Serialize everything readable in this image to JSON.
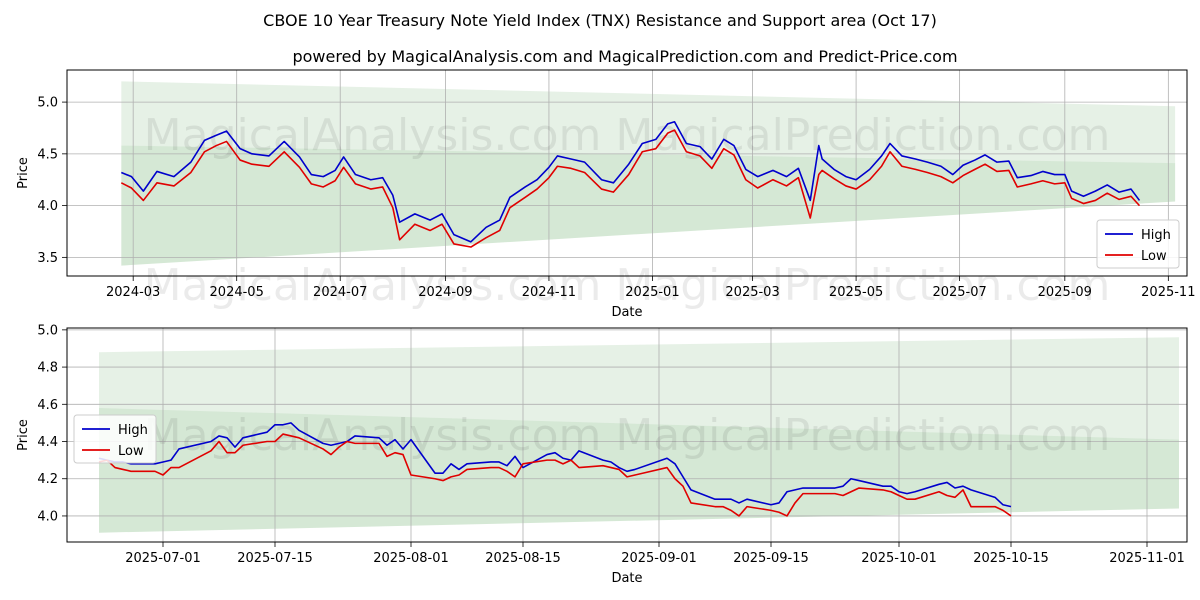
{
  "title": "CBOE 10 Year Treasury Note Yield Index (TNX) Resistance and Support area (Oct 17)",
  "subtitle": "powered by MagicalAnalysis.com and MagicalPrediction.com and Predict-Price.com",
  "watermark": "MagicalAnalysis.com   MagicalPrediction.com",
  "colors": {
    "high": "#0000cc",
    "low": "#e00000",
    "band": "#2e8b2e",
    "grid": "#b0b0b0"
  },
  "chart_data": [
    {
      "type": "line",
      "xlabel": "Date",
      "ylabel": "Price",
      "xlim": [
        "2024-01-22",
        "2025-11-12"
      ],
      "ylim": [
        3.32,
        5.31
      ],
      "yticks": [
        3.5,
        4.0,
        4.5,
        5.0
      ],
      "ytick_labels": [
        "3.5",
        "4.0",
        "4.5",
        "5.0"
      ],
      "xticks": [
        "2024-03-01",
        "2024-05-01",
        "2024-07-01",
        "2024-09-01",
        "2024-11-01",
        "2025-01-01",
        "2025-03-01",
        "2025-05-01",
        "2025-07-01",
        "2025-09-01",
        "2025-11-01"
      ],
      "xtick_labels": [
        "2024-03",
        "2024-05",
        "2024-07",
        "2024-09",
        "2024-11",
        "2025-01",
        "2025-03",
        "2025-05",
        "2025-07",
        "2025-09",
        "2025-11"
      ],
      "grid": true,
      "legend": {
        "placement": "lower-right",
        "entries": [
          "High",
          "Low"
        ]
      },
      "bands": [
        {
          "name": "resistance-area",
          "x": [
            "2024-02-23",
            "2025-11-05"
          ],
          "upper": [
            5.2,
            4.96
          ],
          "lower": [
            4.58,
            4.41
          ]
        },
        {
          "name": "support-area",
          "x": [
            "2024-02-23",
            "2025-11-05"
          ],
          "upper": [
            4.58,
            4.41
          ],
          "lower": [
            3.42,
            4.04
          ]
        }
      ],
      "series": [
        {
          "name": "High",
          "x": [
            "2024-02-23",
            "2024-02-29",
            "2024-03-07",
            "2024-03-15",
            "2024-03-25",
            "2024-04-04",
            "2024-04-12",
            "2024-04-19",
            "2024-04-25",
            "2024-05-03",
            "2024-05-10",
            "2024-05-20",
            "2024-05-29",
            "2024-06-07",
            "2024-06-14",
            "2024-06-21",
            "2024-06-28",
            "2024-07-03",
            "2024-07-10",
            "2024-07-19",
            "2024-07-26",
            "2024-08-01",
            "2024-08-05",
            "2024-08-14",
            "2024-08-23",
            "2024-08-30",
            "2024-09-06",
            "2024-09-16",
            "2024-09-25",
            "2024-10-03",
            "2024-10-09",
            "2024-10-18",
            "2024-10-25",
            "2024-11-01",
            "2024-11-06",
            "2024-11-14",
            "2024-11-22",
            "2024-12-02",
            "2024-12-09",
            "2024-12-18",
            "2024-12-26",
            "2025-01-03",
            "2025-01-10",
            "2025-01-14",
            "2025-01-21",
            "2025-01-29",
            "2025-02-05",
            "2025-02-12",
            "2025-02-18",
            "2025-02-25",
            "2025-03-04",
            "2025-03-13",
            "2025-03-21",
            "2025-03-28",
            "2025-04-04",
            "2025-04-09",
            "2025-04-11",
            "2025-04-18",
            "2025-04-25",
            "2025-05-01",
            "2025-05-09",
            "2025-05-16",
            "2025-05-21",
            "2025-05-28",
            "2025-06-05",
            "2025-06-12",
            "2025-06-20",
            "2025-06-27",
            "2025-07-03",
            "2025-07-10",
            "2025-07-16",
            "2025-07-23",
            "2025-07-30",
            "2025-08-04",
            "2025-08-12",
            "2025-08-19",
            "2025-08-26",
            "2025-09-01",
            "2025-09-05",
            "2025-09-12",
            "2025-09-19",
            "2025-09-26",
            "2025-10-03",
            "2025-10-10",
            "2025-10-15"
          ],
          "values": [
            4.32,
            4.28,
            4.14,
            4.33,
            4.28,
            4.42,
            4.63,
            4.68,
            4.72,
            4.55,
            4.5,
            4.48,
            4.62,
            4.47,
            4.3,
            4.28,
            4.34,
            4.47,
            4.3,
            4.25,
            4.27,
            4.1,
            3.84,
            3.92,
            3.86,
            3.92,
            3.72,
            3.65,
            3.79,
            3.86,
            4.08,
            4.18,
            4.25,
            4.37,
            4.48,
            4.45,
            4.42,
            4.25,
            4.22,
            4.4,
            4.6,
            4.64,
            4.79,
            4.81,
            4.6,
            4.57,
            4.45,
            4.64,
            4.58,
            4.35,
            4.28,
            4.34,
            4.28,
            4.36,
            4.05,
            4.58,
            4.45,
            4.35,
            4.28,
            4.25,
            4.35,
            4.48,
            4.6,
            4.48,
            4.45,
            4.42,
            4.38,
            4.3,
            4.39,
            4.44,
            4.49,
            4.42,
            4.43,
            4.27,
            4.29,
            4.33,
            4.3,
            4.3,
            4.14,
            4.09,
            4.14,
            4.2,
            4.13,
            4.16,
            4.05
          ]
        },
        {
          "name": "Low",
          "x": [
            "2024-02-23",
            "2024-02-29",
            "2024-03-07",
            "2024-03-15",
            "2024-03-25",
            "2024-04-04",
            "2024-04-12",
            "2024-04-19",
            "2024-04-25",
            "2024-05-03",
            "2024-05-10",
            "2024-05-20",
            "2024-05-29",
            "2024-06-07",
            "2024-06-14",
            "2024-06-21",
            "2024-06-28",
            "2024-07-03",
            "2024-07-10",
            "2024-07-19",
            "2024-07-26",
            "2024-08-01",
            "2024-08-05",
            "2024-08-14",
            "2024-08-23",
            "2024-08-30",
            "2024-09-06",
            "2024-09-16",
            "2024-09-25",
            "2024-10-03",
            "2024-10-09",
            "2024-10-18",
            "2024-10-25",
            "2024-11-01",
            "2024-11-06",
            "2024-11-14",
            "2024-11-22",
            "2024-12-02",
            "2024-12-09",
            "2024-12-18",
            "2024-12-26",
            "2025-01-03",
            "2025-01-10",
            "2025-01-14",
            "2025-01-21",
            "2025-01-29",
            "2025-02-05",
            "2025-02-12",
            "2025-02-18",
            "2025-02-25",
            "2025-03-04",
            "2025-03-13",
            "2025-03-21",
            "2025-03-28",
            "2025-04-04",
            "2025-04-09",
            "2025-04-11",
            "2025-04-18",
            "2025-04-25",
            "2025-05-01",
            "2025-05-09",
            "2025-05-16",
            "2025-05-21",
            "2025-05-28",
            "2025-06-05",
            "2025-06-12",
            "2025-06-20",
            "2025-06-27",
            "2025-07-03",
            "2025-07-10",
            "2025-07-16",
            "2025-07-23",
            "2025-07-30",
            "2025-08-04",
            "2025-08-12",
            "2025-08-19",
            "2025-08-26",
            "2025-09-01",
            "2025-09-05",
            "2025-09-12",
            "2025-09-19",
            "2025-09-26",
            "2025-10-03",
            "2025-10-10",
            "2025-10-15"
          ],
          "values": [
            4.22,
            4.17,
            4.05,
            4.22,
            4.19,
            4.32,
            4.52,
            4.58,
            4.62,
            4.44,
            4.4,
            4.38,
            4.52,
            4.37,
            4.21,
            4.18,
            4.24,
            4.37,
            4.21,
            4.16,
            4.18,
            3.98,
            3.67,
            3.82,
            3.76,
            3.82,
            3.63,
            3.6,
            3.69,
            3.76,
            3.98,
            4.08,
            4.16,
            4.27,
            4.38,
            4.36,
            4.32,
            4.16,
            4.13,
            4.3,
            4.52,
            4.55,
            4.7,
            4.73,
            4.52,
            4.48,
            4.36,
            4.55,
            4.49,
            4.25,
            4.17,
            4.25,
            4.19,
            4.27,
            3.88,
            4.3,
            4.34,
            4.26,
            4.19,
            4.16,
            4.25,
            4.38,
            4.52,
            4.38,
            4.35,
            4.32,
            4.28,
            4.22,
            4.29,
            4.35,
            4.4,
            4.33,
            4.34,
            4.18,
            4.21,
            4.24,
            4.21,
            4.22,
            4.07,
            4.02,
            4.05,
            4.12,
            4.06,
            4.09,
            4.0
          ]
        }
      ]
    },
    {
      "type": "line",
      "xlabel": "Date",
      "ylabel": "Price",
      "xlim": [
        "2025-06-19",
        "2025-11-06"
      ],
      "ylim": [
        3.86,
        5.01
      ],
      "yticks": [
        4.0,
        4.2,
        4.4,
        4.6,
        4.8,
        5.0
      ],
      "ytick_labels": [
        "4.0",
        "4.2",
        "4.4",
        "4.6",
        "4.8",
        "5.0"
      ],
      "xticks": [
        "2025-07-01",
        "2025-07-15",
        "2025-08-01",
        "2025-08-15",
        "2025-09-01",
        "2025-09-15",
        "2025-10-01",
        "2025-10-15",
        "2025-11-01"
      ],
      "xtick_labels": [
        "2025-07-01",
        "2025-07-15",
        "2025-08-01",
        "2025-08-15",
        "2025-09-01",
        "2025-09-15",
        "2025-10-01",
        "2025-10-15",
        "2025-11-01"
      ],
      "grid": true,
      "legend": {
        "placement": "upper-left",
        "entries": [
          "High",
          "Low"
        ]
      },
      "bands": [
        {
          "name": "resistance-area",
          "x": [
            "2025-06-23",
            "2025-11-05"
          ],
          "upper": [
            4.88,
            4.96
          ],
          "lower": [
            4.58,
            4.41
          ]
        },
        {
          "name": "support-area",
          "x": [
            "2025-06-23",
            "2025-11-05"
          ],
          "upper": [
            4.58,
            4.41
          ],
          "lower": [
            3.91,
            4.04
          ]
        }
      ],
      "series": [
        {
          "name": "High",
          "x": [
            "2025-06-23",
            "2025-06-24",
            "2025-06-25",
            "2025-06-26",
            "2025-06-27",
            "2025-06-30",
            "2025-07-01",
            "2025-07-02",
            "2025-07-03",
            "2025-07-07",
            "2025-07-08",
            "2025-07-09",
            "2025-07-10",
            "2025-07-11",
            "2025-07-14",
            "2025-07-15",
            "2025-07-16",
            "2025-07-17",
            "2025-07-18",
            "2025-07-21",
            "2025-07-22",
            "2025-07-23",
            "2025-07-24",
            "2025-07-25",
            "2025-07-28",
            "2025-07-29",
            "2025-07-30",
            "2025-07-31",
            "2025-08-01",
            "2025-08-04",
            "2025-08-05",
            "2025-08-06",
            "2025-08-07",
            "2025-08-08",
            "2025-08-11",
            "2025-08-12",
            "2025-08-13",
            "2025-08-14",
            "2025-08-15",
            "2025-08-18",
            "2025-08-19",
            "2025-08-20",
            "2025-08-21",
            "2025-08-22",
            "2025-08-25",
            "2025-08-26",
            "2025-08-27",
            "2025-08-28",
            "2025-08-29",
            "2025-09-02",
            "2025-09-03",
            "2025-09-04",
            "2025-09-05",
            "2025-09-08",
            "2025-09-09",
            "2025-09-10",
            "2025-09-11",
            "2025-09-12",
            "2025-09-15",
            "2025-09-16",
            "2025-09-17",
            "2025-09-18",
            "2025-09-19",
            "2025-09-22",
            "2025-09-23",
            "2025-09-24",
            "2025-09-25",
            "2025-09-26",
            "2025-09-29",
            "2025-09-30",
            "2025-10-01",
            "2025-10-02",
            "2025-10-03",
            "2025-10-06",
            "2025-10-07",
            "2025-10-08",
            "2025-10-09",
            "2025-10-10",
            "2025-10-13",
            "2025-10-14",
            "2025-10-15"
          ],
          "values": [
            4.31,
            4.3,
            4.29,
            4.29,
            4.28,
            4.28,
            4.29,
            4.3,
            4.36,
            4.4,
            4.43,
            4.42,
            4.37,
            4.42,
            4.45,
            4.49,
            4.49,
            4.5,
            4.46,
            4.39,
            4.38,
            4.39,
            4.4,
            4.43,
            4.42,
            4.38,
            4.41,
            4.36,
            4.41,
            4.23,
            4.23,
            4.28,
            4.25,
            4.28,
            4.29,
            4.29,
            4.27,
            4.32,
            4.26,
            4.33,
            4.34,
            4.31,
            4.3,
            4.35,
            4.3,
            4.29,
            4.26,
            4.24,
            4.25,
            4.31,
            4.28,
            4.21,
            4.14,
            4.09,
            4.09,
            4.09,
            4.07,
            4.09,
            4.06,
            4.07,
            4.13,
            4.14,
            4.15,
            4.15,
            4.15,
            4.16,
            4.2,
            4.19,
            4.16,
            4.16,
            4.13,
            4.12,
            4.13,
            4.17,
            4.18,
            4.15,
            4.16,
            4.14,
            4.1,
            4.06,
            4.05
          ]
        },
        {
          "name": "Low",
          "x": [
            "2025-06-23",
            "2025-06-24",
            "2025-06-25",
            "2025-06-26",
            "2025-06-27",
            "2025-06-30",
            "2025-07-01",
            "2025-07-02",
            "2025-07-03",
            "2025-07-07",
            "2025-07-08",
            "2025-07-09",
            "2025-07-10",
            "2025-07-11",
            "2025-07-14",
            "2025-07-15",
            "2025-07-16",
            "2025-07-17",
            "2025-07-18",
            "2025-07-21",
            "2025-07-22",
            "2025-07-23",
            "2025-07-24",
            "2025-07-25",
            "2025-07-28",
            "2025-07-29",
            "2025-07-30",
            "2025-07-31",
            "2025-08-01",
            "2025-08-04",
            "2025-08-05",
            "2025-08-06",
            "2025-08-07",
            "2025-08-08",
            "2025-08-11",
            "2025-08-12",
            "2025-08-13",
            "2025-08-14",
            "2025-08-15",
            "2025-08-18",
            "2025-08-19",
            "2025-08-20",
            "2025-08-21",
            "2025-08-22",
            "2025-08-25",
            "2025-08-26",
            "2025-08-27",
            "2025-08-28",
            "2025-08-29",
            "2025-09-02",
            "2025-09-03",
            "2025-09-04",
            "2025-09-05",
            "2025-09-08",
            "2025-09-09",
            "2025-09-10",
            "2025-09-11",
            "2025-09-12",
            "2025-09-15",
            "2025-09-16",
            "2025-09-17",
            "2025-09-18",
            "2025-09-19",
            "2025-09-22",
            "2025-09-23",
            "2025-09-24",
            "2025-09-25",
            "2025-09-26",
            "2025-09-29",
            "2025-09-30",
            "2025-10-01",
            "2025-10-02",
            "2025-10-03",
            "2025-10-06",
            "2025-10-07",
            "2025-10-08",
            "2025-10-09",
            "2025-10-10",
            "2025-10-13",
            "2025-10-14",
            "2025-10-15"
          ],
          "values": [
            4.29,
            4.3,
            4.26,
            4.25,
            4.24,
            4.24,
            4.22,
            4.26,
            4.26,
            4.35,
            4.4,
            4.34,
            4.34,
            4.38,
            4.4,
            4.4,
            4.44,
            4.43,
            4.42,
            4.36,
            4.33,
            4.37,
            4.4,
            4.39,
            4.39,
            4.32,
            4.34,
            4.33,
            4.22,
            4.2,
            4.19,
            4.21,
            4.22,
            4.25,
            4.26,
            4.26,
            4.24,
            4.21,
            4.28,
            4.3,
            4.3,
            4.28,
            4.3,
            4.26,
            4.27,
            4.26,
            4.25,
            4.21,
            4.22,
            4.26,
            4.2,
            4.16,
            4.07,
            4.05,
            4.05,
            4.03,
            4.0,
            4.05,
            4.03,
            4.02,
            4.0,
            4.07,
            4.12,
            4.12,
            4.12,
            4.11,
            4.13,
            4.15,
            4.14,
            4.13,
            4.11,
            4.09,
            4.09,
            4.13,
            4.11,
            4.1,
            4.14,
            4.05,
            4.05,
            4.03,
            4.0
          ]
        }
      ]
    }
  ]
}
